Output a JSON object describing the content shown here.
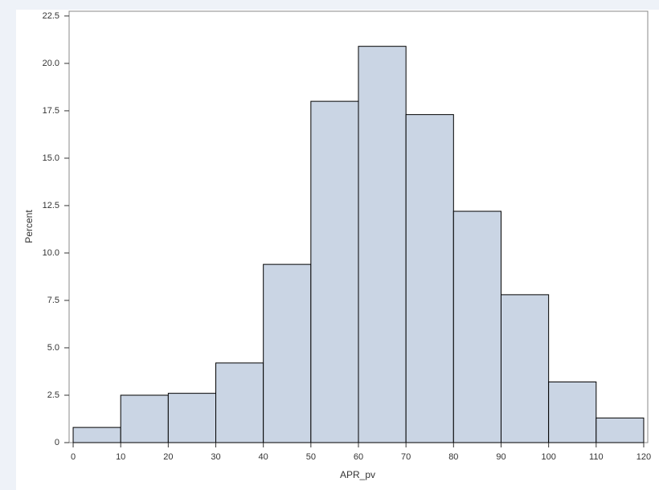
{
  "chart_data": {
    "type": "histogram",
    "x_label": "APR_pv",
    "y_label": "Percent",
    "bins": [
      0,
      10,
      20,
      30,
      40,
      50,
      60,
      70,
      80,
      90,
      100,
      110,
      120
    ],
    "counts": [
      0.8,
      2.5,
      2.6,
      4.2,
      9.4,
      18.0,
      20.9,
      17.3,
      12.2,
      7.8,
      3.2,
      1.3
    ],
    "color": "#cad5e4",
    "xlim": [
      -0.85,
      120.85
    ],
    "xticks": [
      0,
      10,
      20,
      30,
      40,
      50,
      60,
      70,
      80,
      90,
      100,
      110,
      120
    ],
    "ylim": [
      0,
      22.75
    ],
    "yticks": [
      0,
      2.5,
      {
        "value": 5,
        "label": "5.0"
      },
      7.5,
      {
        "value": 10,
        "label": "10.0"
      },
      12.5,
      {
        "value": 15,
        "label": "15.0"
      },
      17.5,
      {
        "value": 20,
        "label": "20.0"
      },
      22.5
    ]
  }
}
